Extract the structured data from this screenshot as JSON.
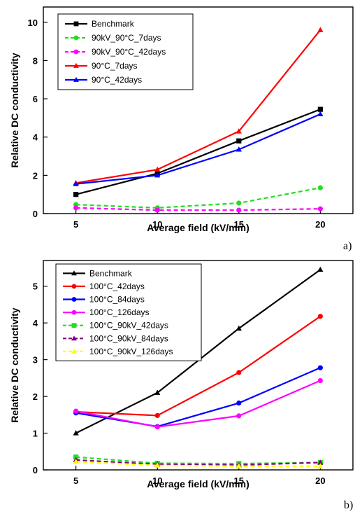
{
  "chart_data": [
    {
      "type": "line",
      "panel_label": "a)",
      "xlabel": "Average field (kV/mm)",
      "ylabel": "Relative DC conductivity",
      "x": [
        5,
        10,
        15,
        20
      ],
      "xlim": [
        3,
        22
      ],
      "ylim": [
        0,
        10.8
      ],
      "xticks": [
        "5",
        "10",
        "15",
        "20"
      ],
      "yticks": [
        "0",
        "2",
        "4",
        "6",
        "8",
        "10"
      ],
      "legend_position": "top-left",
      "grid": false,
      "series": [
        {
          "name": "Benchmark",
          "values": [
            1.0,
            2.1,
            3.8,
            5.45
          ],
          "color": "#000000",
          "marker": "square",
          "dash": false
        },
        {
          "name": "90kV_90°C_7days",
          "values": [
            0.47,
            0.3,
            0.55,
            1.35
          ],
          "color": "#22dd22",
          "marker": "circle",
          "dash": true
        },
        {
          "name": "90kV_90°C_42days",
          "values": [
            0.3,
            0.18,
            0.18,
            0.25
          ],
          "color": "#ff00ff",
          "marker": "circle",
          "dash": true
        },
        {
          "name": "90°C_7days",
          "values": [
            1.6,
            2.3,
            4.3,
            9.6
          ],
          "color": "#ff0000",
          "marker": "triangle",
          "dash": false
        },
        {
          "name": "90°C_42days",
          "values": [
            1.55,
            2.0,
            3.35,
            5.2
          ],
          "color": "#0000ff",
          "marker": "triangle",
          "dash": false
        }
      ]
    },
    {
      "type": "line",
      "panel_label": "b)",
      "xlabel": "Average field (kV/mm)",
      "ylabel": "Relative DC conductivity",
      "x": [
        5,
        10,
        15,
        20
      ],
      "xlim": [
        3,
        22
      ],
      "ylim": [
        0,
        5.7
      ],
      "xticks": [
        "5",
        "10",
        "15",
        "20"
      ],
      "yticks": [
        "0",
        "1",
        "2",
        "3",
        "4",
        "5"
      ],
      "legend_position": "top-left",
      "grid": false,
      "series": [
        {
          "name": "Benchmark",
          "values": [
            1.0,
            2.1,
            3.85,
            5.45
          ],
          "color": "#000000",
          "marker": "triangle",
          "dash": false
        },
        {
          "name": "100°C_42days",
          "values": [
            1.58,
            1.48,
            2.65,
            4.18
          ],
          "color": "#ff0000",
          "marker": "circle",
          "dash": false
        },
        {
          "name": "100°C_84days",
          "values": [
            1.55,
            1.18,
            1.82,
            2.78
          ],
          "color": "#0000ff",
          "marker": "circle",
          "dash": false
        },
        {
          "name": "100°C_126days",
          "values": [
            1.6,
            1.17,
            1.47,
            2.43
          ],
          "color": "#ff00ff",
          "marker": "circle",
          "dash": false
        },
        {
          "name": "100°C_90kV_42days",
          "values": [
            0.35,
            0.18,
            0.17,
            0.2
          ],
          "color": "#22dd22",
          "marker": "square",
          "dash": true
        },
        {
          "name": "100°C_90kV_84days",
          "values": [
            0.27,
            0.15,
            0.13,
            0.2
          ],
          "color": "#800080",
          "marker": "triangle",
          "dash": true
        },
        {
          "name": "100°C_90kV_126days",
          "values": [
            0.22,
            0.12,
            0.1,
            0.1
          ],
          "color": "#ffff00",
          "marker": "triangle",
          "dash": true
        }
      ]
    }
  ]
}
